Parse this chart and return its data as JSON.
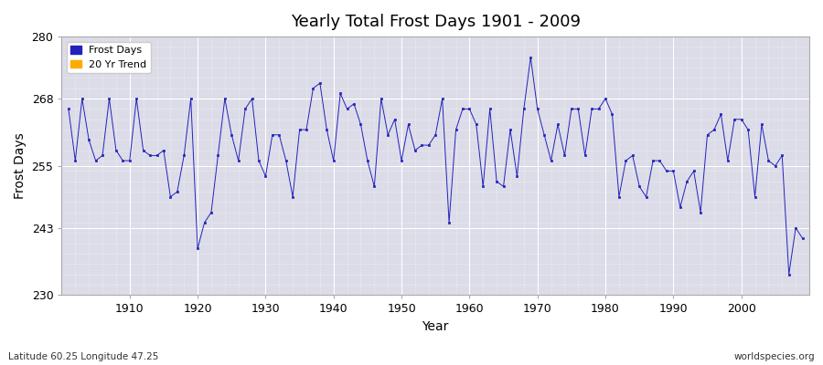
{
  "title": "Yearly Total Frost Days 1901 - 2009",
  "xlabel": "Year",
  "ylabel": "Frost Days",
  "xlim": [
    1900,
    2010
  ],
  "ylim": [
    230,
    280
  ],
  "yticks": [
    230,
    243,
    255,
    268,
    280
  ],
  "xticks": [
    1910,
    1920,
    1930,
    1940,
    1950,
    1960,
    1970,
    1980,
    1990,
    2000
  ],
  "bg_outer": "#ffffff",
  "bg_plot": "#dcdce8",
  "grid_color": "#ffffff",
  "line_color": "#2222bb",
  "marker_color": "#2222bb",
  "legend_entries": [
    "Frost Days",
    "20 Yr Trend"
  ],
  "legend_colors": [
    "#2222bb",
    "#ffaa00"
  ],
  "subtitle": "Latitude 60.25 Longitude 47.25",
  "watermark": "worldspecies.org",
  "years": [
    1901,
    1902,
    1903,
    1904,
    1905,
    1906,
    1907,
    1908,
    1909,
    1910,
    1911,
    1912,
    1913,
    1914,
    1915,
    1916,
    1917,
    1918,
    1919,
    1920,
    1921,
    1922,
    1923,
    1924,
    1925,
    1926,
    1927,
    1928,
    1929,
    1930,
    1931,
    1932,
    1933,
    1934,
    1935,
    1936,
    1937,
    1938,
    1939,
    1940,
    1941,
    1942,
    1943,
    1944,
    1945,
    1946,
    1947,
    1948,
    1949,
    1950,
    1951,
    1952,
    1953,
    1954,
    1955,
    1956,
    1957,
    1958,
    1959,
    1960,
    1961,
    1962,
    1963,
    1964,
    1965,
    1966,
    1967,
    1968,
    1969,
    1970,
    1971,
    1972,
    1973,
    1974,
    1975,
    1976,
    1977,
    1978,
    1979,
    1980,
    1981,
    1982,
    1983,
    1984,
    1985,
    1986,
    1987,
    1988,
    1989,
    1990,
    1991,
    1992,
    1993,
    1994,
    1995,
    1996,
    1997,
    1998,
    1999,
    2000,
    2001,
    2002,
    2003,
    2004,
    2005,
    2006,
    2007,
    2008,
    2009
  ],
  "values": [
    266,
    256,
    268,
    260,
    256,
    257,
    268,
    258,
    256,
    256,
    268,
    258,
    257,
    257,
    258,
    249,
    250,
    257,
    268,
    239,
    244,
    246,
    257,
    268,
    261,
    256,
    266,
    268,
    256,
    253,
    261,
    261,
    256,
    249,
    262,
    262,
    270,
    271,
    262,
    256,
    269,
    266,
    267,
    263,
    256,
    251,
    268,
    261,
    264,
    256,
    263,
    258,
    259,
    259,
    261,
    268,
    244,
    262,
    266,
    266,
    263,
    251,
    266,
    252,
    251,
    262,
    253,
    266,
    276,
    266,
    261,
    256,
    263,
    257,
    266,
    266,
    257,
    266,
    266,
    268,
    265,
    249,
    256,
    257,
    251,
    249,
    256,
    256,
    254,
    254,
    247,
    252,
    254,
    246,
    261,
    262,
    265,
    256,
    264,
    264,
    262,
    249,
    263,
    256,
    255,
    257,
    234,
    243,
    241
  ]
}
